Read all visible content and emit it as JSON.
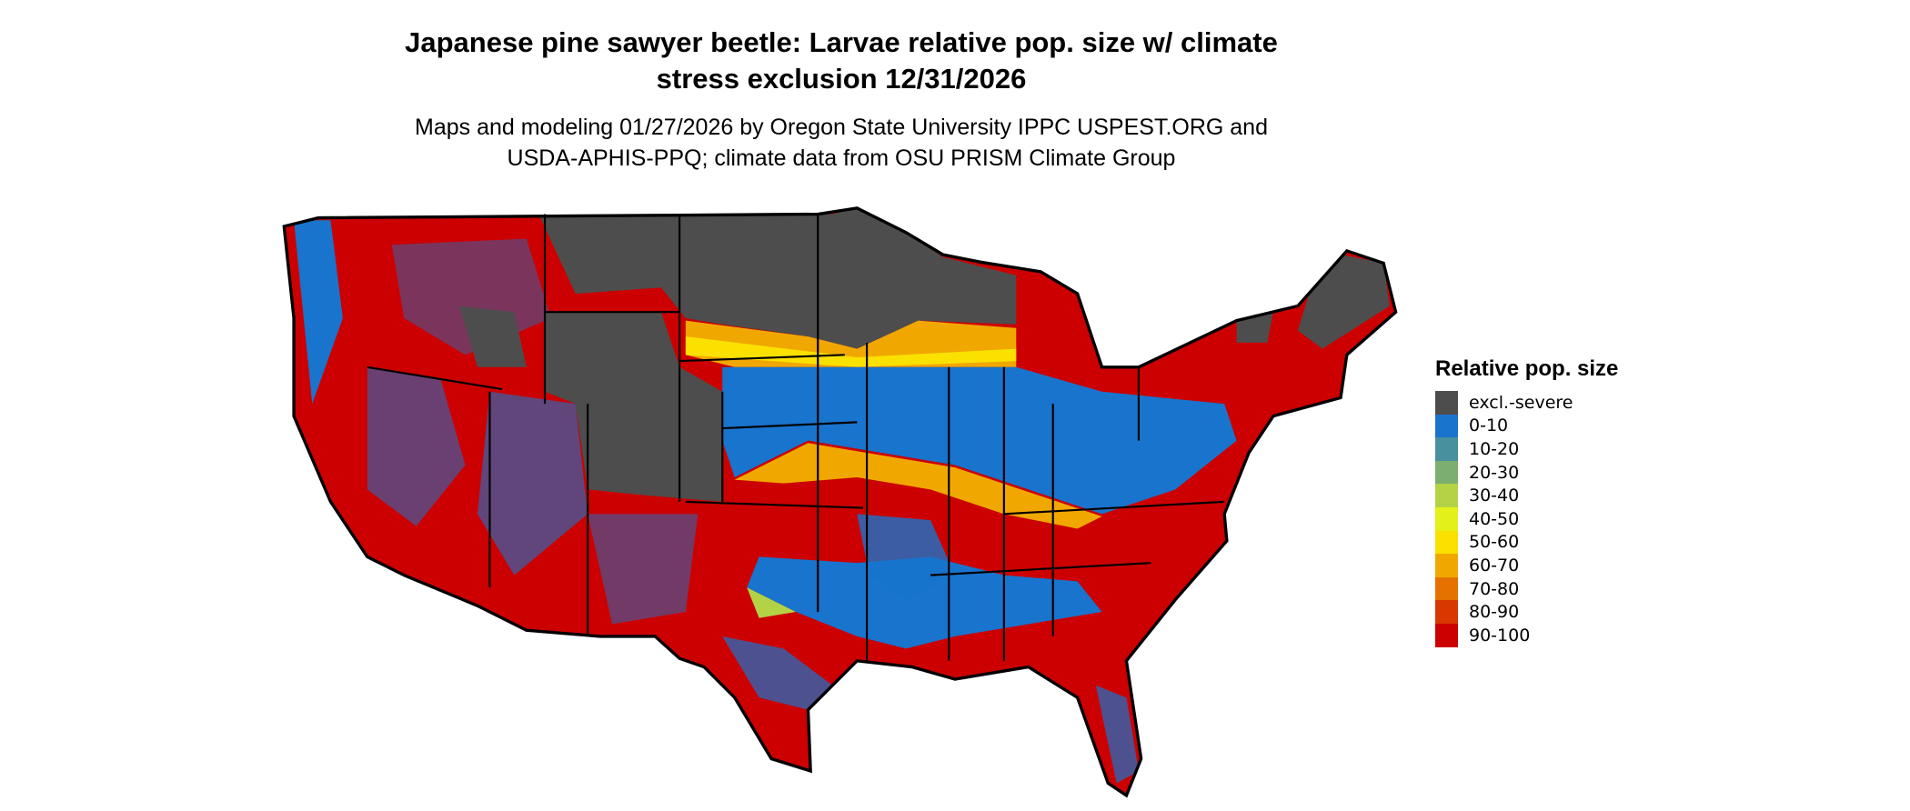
{
  "title": {
    "line1": "Japanese pine sawyer beetle: Larvae relative pop. size w/ climate",
    "line2": "stress exclusion 12/31/2026"
  },
  "subtitle": {
    "line1": "Maps and modeling 01/27/2026 by Oregon State University IPPC USPEST.ORG and",
    "line2": "USDA-APHIS-PPQ; climate data from OSU PRISM Climate Group"
  },
  "legend": {
    "title": "Relative pop. size",
    "items": [
      {
        "label": "excl.-severe",
        "color": "#4d4d4d"
      },
      {
        "label": "0-10",
        "color": "#1874cd"
      },
      {
        "label": "10-20",
        "color": "#48909e"
      },
      {
        "label": "20-30",
        "color": "#7caf6f"
      },
      {
        "label": "30-40",
        "color": "#b3d246"
      },
      {
        "label": "40-50",
        "color": "#e3f01a"
      },
      {
        "label": "50-60",
        "color": "#fae100"
      },
      {
        "label": "60-70",
        "color": "#f0a800"
      },
      {
        "label": "70-80",
        "color": "#e57200"
      },
      {
        "label": "80-90",
        "color": "#d83800"
      },
      {
        "label": "90-100",
        "color": "#cc0000"
      }
    ]
  },
  "map": {
    "region": "Contiguous United States",
    "dominant_class": "90-100"
  }
}
